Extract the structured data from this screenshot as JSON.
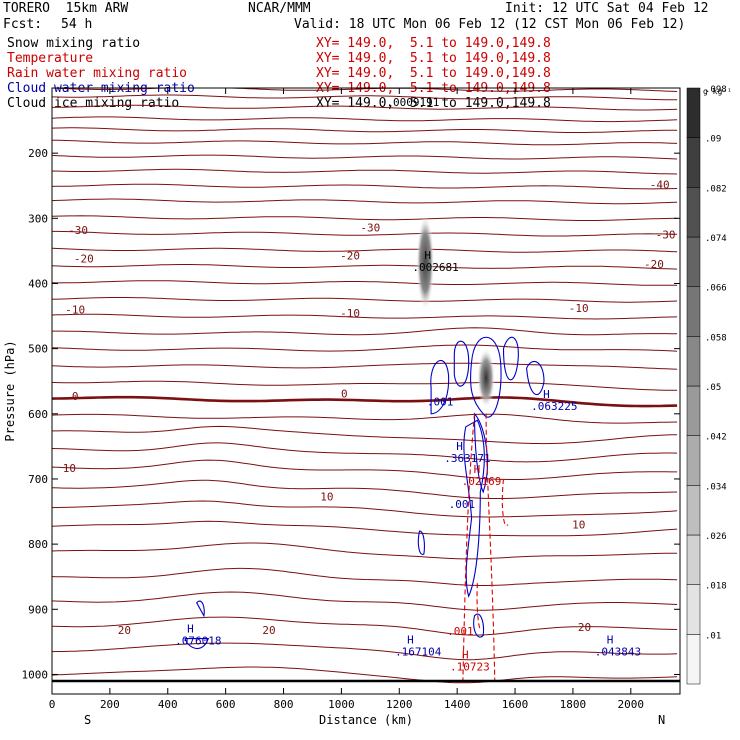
{
  "header": {
    "model": "TORERO  15km ARW",
    "center": "NCAR/MMM",
    "init": "Init: 12 UTC Sat 04 Feb 12",
    "fcst_label": "Fcst:",
    "fcst_value": "54 h",
    "valid": "Valid: 18 UTC Mon 06 Feb 12 (12 CST Mon 06 Feb 12)"
  },
  "legend": [
    {
      "name": "Snow mixing ratio",
      "color": "#000000",
      "xy": "XY= 149.0,  5.1 to 149.0,149.8"
    },
    {
      "name": "Temperature",
      "color": "#cc0000",
      "xy": "XY= 149.0,  5.1 to 149.0,149.8"
    },
    {
      "name": "Rain water mixing ratio",
      "color": "#cc0000",
      "xy": "XY= 149.0,  5.1 to 149.0,149.8"
    },
    {
      "name": "Cloud water mixing ratio",
      "color": "#0000aa",
      "xy": "XY= 149.0,  5.1 to 149.0,149.8"
    },
    {
      "name": "Cloud ice mixing ratio",
      "color": "#000000",
      "xy": "XY= 149.0,  5.1 to 149.0,149.8"
    }
  ],
  "chart_data": {
    "type": "cross-section contour",
    "xlabel": "Distance (km)",
    "ylabel": "Pressure (hPa)",
    "x_ticks": [
      0,
      200,
      400,
      600,
      800,
      1000,
      1200,
      1400,
      1600,
      1800,
      2000
    ],
    "y_ticks": [
      200,
      300,
      400,
      500,
      600,
      700,
      800,
      900,
      1000
    ],
    "xlim": [
      0,
      2170
    ],
    "ylim": [
      100,
      1030
    ],
    "ends": {
      "left": "S",
      "right": "N"
    },
    "temperature_labels": [
      {
        "x": 90,
        "p": 318,
        "text": "-30"
      },
      {
        "x": 1100,
        "p": 314,
        "text": "-30"
      },
      {
        "x": 2120,
        "p": 325,
        "text": "-30"
      },
      {
        "x": 110,
        "p": 362,
        "text": "-20"
      },
      {
        "x": 1030,
        "p": 357,
        "text": "-20"
      },
      {
        "x": 2080,
        "p": 370,
        "text": "-20"
      },
      {
        "x": 80,
        "p": 440,
        "text": "-10"
      },
      {
        "x": 1030,
        "p": 445,
        "text": "-10"
      },
      {
        "x": 1820,
        "p": 438,
        "text": "-10"
      },
      {
        "x": 2100,
        "p": 248,
        "text": "-40"
      },
      {
        "x": 80,
        "p": 573,
        "text": "0"
      },
      {
        "x": 1010,
        "p": 569,
        "text": "0"
      },
      {
        "x": 60,
        "p": 683,
        "text": "10"
      },
      {
        "x": 950,
        "p": 727,
        "text": "10"
      },
      {
        "x": 1820,
        "p": 770,
        "text": "10"
      },
      {
        "x": 250,
        "p": 932,
        "text": "20"
      },
      {
        "x": 750,
        "p": 932,
        "text": "20"
      },
      {
        "x": 1840,
        "p": 927,
        "text": "20"
      }
    ],
    "extrema": [
      {
        "x": 1280,
        "p": 372,
        "h": "H",
        "value": ".002681",
        "color": "#000000"
      },
      {
        "x": 1190,
        "p": 0,
        "h": "",
        "value": ".0009191",
        "color": "#000000",
        "top": true
      },
      {
        "x": 1330,
        "p": 578,
        "h": "",
        "value": ".001",
        "color": "#0000aa"
      },
      {
        "x": 1690,
        "p": 585,
        "h": "H",
        "value": ".063225",
        "color": "#0000aa"
      },
      {
        "x": 1390,
        "p": 665,
        "h": "H",
        "value": ".363171",
        "color": "#0000aa"
      },
      {
        "x": 1450,
        "p": 700,
        "h": "H",
        "value": ".02169",
        "color": "#cc0000"
      },
      {
        "x": 1405,
        "p": 735,
        "h": "",
        "value": ".001",
        "color": "#0000aa"
      },
      {
        "x": 460,
        "p": 945,
        "h": "H",
        "value": ".076018",
        "color": "#0000aa"
      },
      {
        "x": 1220,
        "p": 962,
        "h": "H",
        "value": ".167104",
        "color": "#0000aa"
      },
      {
        "x": 1910,
        "p": 962,
        "h": "H",
        "value": ".043843",
        "color": "#0000aa"
      },
      {
        "x": 1410,
        "p": 985,
        "h": "H",
        "value": ".10723",
        "color": "#cc0000"
      },
      {
        "x": 1400,
        "p": 930,
        "h": "",
        "value": ".001",
        "color": "#cc0000"
      }
    ],
    "colorbar": {
      "unit": "g kg⁻¹",
      "labels": [
        ".01",
        ".018",
        ".026",
        ".034",
        ".042",
        ".05",
        ".058",
        ".066",
        ".074",
        ".082",
        ".09",
        ".098"
      ]
    }
  }
}
